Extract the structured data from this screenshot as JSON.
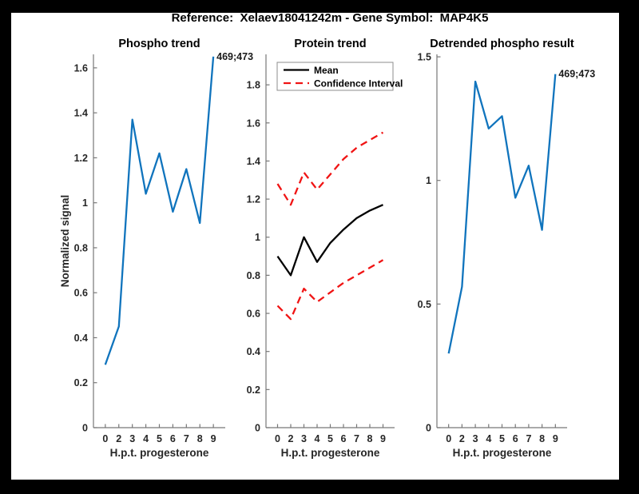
{
  "figure": {
    "title": "Reference:  Xelaev18041242m - Gene Symbol:  MAP4K5",
    "frame_color": "#000000",
    "canvas_color": "#ffffff",
    "axis_text_color": "#262626",
    "spine_color": "#777777"
  },
  "chart_data": [
    {
      "type": "line",
      "name": "phospho-trend",
      "title": "Phospho trend",
      "xlabel": "H.p.t. progesterone",
      "ylabel": "Normalized signal",
      "categories": [
        "0",
        "2",
        "3",
        "4",
        "5",
        "6",
        "7",
        "8",
        "9"
      ],
      "yticks": [
        0,
        0.2,
        0.4,
        0.6,
        0.8,
        1,
        1.2,
        1.4,
        1.6
      ],
      "ylim": [
        0,
        1.66
      ],
      "grid": false,
      "series": [
        {
          "name": "phospho signal",
          "color": "#1074BD",
          "style": "solid",
          "values": [
            0.28,
            0.45,
            1.37,
            1.04,
            1.22,
            0.96,
            1.15,
            0.91,
            1.65
          ]
        }
      ],
      "annotation": {
        "text": "469;473",
        "point_index": 8
      }
    },
    {
      "type": "line",
      "name": "protein-trend",
      "title": "Protein trend",
      "xlabel": "H.p.t. progesterone",
      "ylabel": "",
      "categories": [
        "0",
        "2",
        "3",
        "4",
        "5",
        "6",
        "7",
        "8",
        "9"
      ],
      "yticks": [
        0,
        0.2,
        0.4,
        0.6,
        0.8,
        1,
        1.2,
        1.4,
        1.6,
        1.8
      ],
      "ylim": [
        0,
        1.96
      ],
      "grid": false,
      "legend": {
        "position": "inside-top-left",
        "entries": [
          {
            "label": "Mean",
            "color": "#000000",
            "style": "solid"
          },
          {
            "label": "Confidence Interval",
            "color": "#F01414",
            "style": "dashed"
          }
        ]
      },
      "series": [
        {
          "name": "Mean",
          "color": "#000000",
          "style": "solid",
          "values": [
            0.9,
            0.8,
            1.0,
            0.87,
            0.97,
            1.04,
            1.1,
            1.14,
            1.17
          ]
        },
        {
          "name": "Confidence Interval upper",
          "color": "#F01414",
          "style": "dashed",
          "values": [
            1.28,
            1.17,
            1.34,
            1.25,
            1.33,
            1.41,
            1.47,
            1.51,
            1.55
          ]
        },
        {
          "name": "Confidence Interval lower",
          "color": "#F01414",
          "style": "dashed",
          "values": [
            0.64,
            0.57,
            0.73,
            0.66,
            0.71,
            0.76,
            0.8,
            0.84,
            0.88
          ]
        }
      ]
    },
    {
      "type": "line",
      "name": "detrended-phospho-result",
      "title": "Detrended phospho result",
      "xlabel": "H.p.t. progesterone",
      "ylabel": "",
      "categories": [
        "0",
        "2",
        "3",
        "4",
        "5",
        "6",
        "7",
        "8",
        "9"
      ],
      "yticks": [
        0,
        0.5,
        1,
        1.5
      ],
      "ylim": [
        0,
        1.51
      ],
      "grid": false,
      "series": [
        {
          "name": "detrended phospho",
          "color": "#1074BD",
          "style": "solid",
          "values": [
            0.3,
            0.57,
            1.4,
            1.21,
            1.26,
            0.93,
            1.06,
            0.8,
            1.43
          ]
        }
      ],
      "annotation": {
        "text": "469;473",
        "point_index": 8
      }
    }
  ]
}
